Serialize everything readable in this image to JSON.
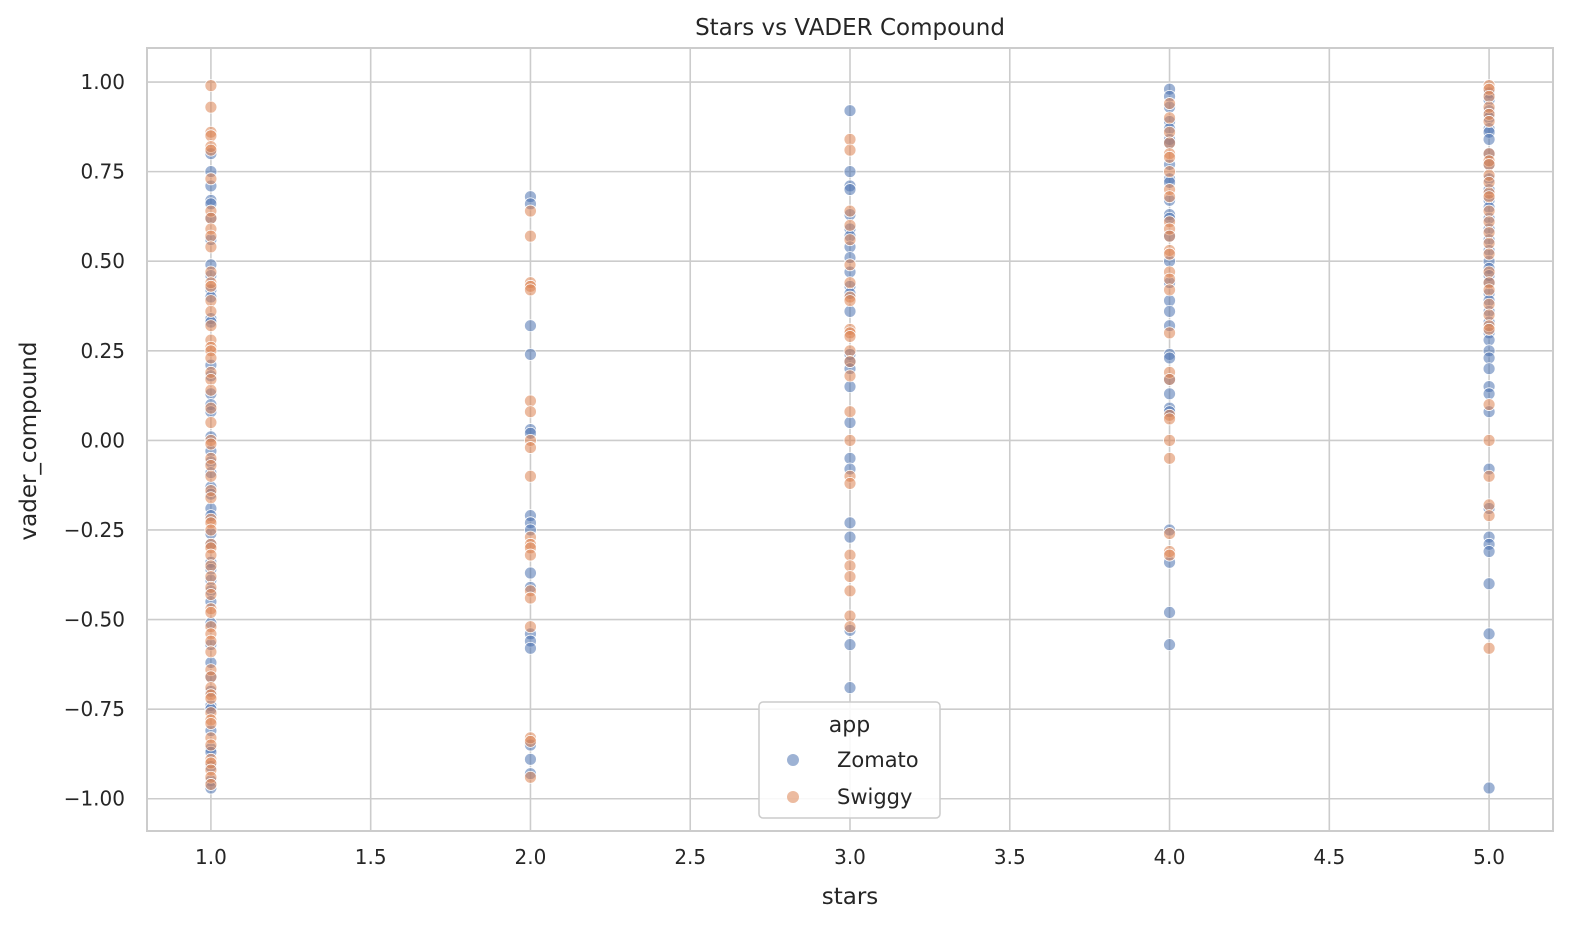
{
  "chart_data": {
    "type": "scatter",
    "title": "Stars vs VADER Compound",
    "xlabel": "stars",
    "ylabel": "vader_compound",
    "xlim": [
      0.8,
      5.2
    ],
    "ylim": [
      -1.09,
      1.095
    ],
    "x_ticks": [
      1.0,
      1.5,
      2.0,
      2.5,
      3.0,
      3.5,
      4.0,
      4.5,
      5.0
    ],
    "x_tick_labels": [
      "1.0",
      "1.5",
      "2.0",
      "2.5",
      "3.0",
      "3.5",
      "4.0",
      "4.5",
      "5.0"
    ],
    "y_ticks": [
      1.0,
      0.75,
      0.5,
      0.25,
      0.0,
      -0.25,
      -0.5,
      -0.75,
      -1.0
    ],
    "y_tick_labels": [
      "1.00",
      "0.75",
      "0.50",
      "0.25",
      "0.00",
      "−0.25",
      "−0.50",
      "−0.75",
      "−1.00"
    ],
    "grid": true,
    "legend": {
      "title": "app",
      "placement": "lower-center"
    },
    "series": [
      {
        "name": "Zomato",
        "color": "#4c72b0",
        "points": [
          [
            1,
            0.8
          ],
          [
            1,
            0.75
          ],
          [
            1,
            0.71
          ],
          [
            1,
            0.67
          ],
          [
            1,
            0.66
          ],
          [
            1,
            0.62
          ],
          [
            1,
            0.56
          ],
          [
            1,
            0.49
          ],
          [
            1,
            0.46
          ],
          [
            1,
            0.42
          ],
          [
            1,
            0.4
          ],
          [
            1,
            0.34
          ],
          [
            1,
            0.33
          ],
          [
            1,
            0.21
          ],
          [
            1,
            0.18
          ],
          [
            1,
            0.13
          ],
          [
            1,
            0.1
          ],
          [
            1,
            0.08
          ],
          [
            1,
            0.01
          ],
          [
            1,
            -0.03
          ],
          [
            1,
            -0.06
          ],
          [
            1,
            -0.09
          ],
          [
            1,
            -0.13
          ],
          [
            1,
            -0.15
          ],
          [
            1,
            -0.19
          ],
          [
            1,
            -0.21
          ],
          [
            1,
            -0.26
          ],
          [
            1,
            -0.29
          ],
          [
            1,
            -0.34
          ],
          [
            1,
            -0.36
          ],
          [
            1,
            -0.39
          ],
          [
            1,
            -0.42
          ],
          [
            1,
            -0.45
          ],
          [
            1,
            -0.51
          ],
          [
            1,
            -0.57
          ],
          [
            1,
            -0.62
          ],
          [
            1,
            -0.66
          ],
          [
            1,
            -0.7
          ],
          [
            1,
            -0.74
          ],
          [
            1,
            -0.75
          ],
          [
            1,
            -0.81
          ],
          [
            1,
            -0.86
          ],
          [
            1,
            -0.87
          ],
          [
            1,
            -0.91
          ],
          [
            1,
            -0.95
          ],
          [
            1,
            -0.97
          ],
          [
            2,
            0.68
          ],
          [
            2,
            0.66
          ],
          [
            2,
            0.32
          ],
          [
            2,
            0.24
          ],
          [
            2,
            0.03
          ],
          [
            2,
            0.02
          ],
          [
            2,
            -0.21
          ],
          [
            2,
            -0.23
          ],
          [
            2,
            -0.25
          ],
          [
            2,
            -0.37
          ],
          [
            2,
            -0.41
          ],
          [
            2,
            -0.54
          ],
          [
            2,
            -0.56
          ],
          [
            2,
            -0.58
          ],
          [
            2,
            -0.85
          ],
          [
            2,
            -0.89
          ],
          [
            2,
            -0.93
          ],
          [
            3,
            0.92
          ],
          [
            3,
            0.75
          ],
          [
            3,
            0.71
          ],
          [
            3,
            0.7
          ],
          [
            3,
            0.63
          ],
          [
            3,
            0.59
          ],
          [
            3,
            0.57
          ],
          [
            3,
            0.54
          ],
          [
            3,
            0.51
          ],
          [
            3,
            0.47
          ],
          [
            3,
            0.43
          ],
          [
            3,
            0.41
          ],
          [
            3,
            0.36
          ],
          [
            3,
            0.24
          ],
          [
            3,
            0.22
          ],
          [
            3,
            0.2
          ],
          [
            3,
            0.15
          ],
          [
            3,
            0.05
          ],
          [
            3,
            -0.05
          ],
          [
            3,
            -0.08
          ],
          [
            3,
            -0.23
          ],
          [
            3,
            -0.27
          ],
          [
            3,
            -0.53
          ],
          [
            3,
            -0.57
          ],
          [
            3,
            -0.69
          ],
          [
            4,
            0.98
          ],
          [
            4,
            0.96
          ],
          [
            4,
            0.93
          ],
          [
            4,
            0.89
          ],
          [
            4,
            0.87
          ],
          [
            4,
            0.84
          ],
          [
            4,
            0.83
          ],
          [
            4,
            0.77
          ],
          [
            4,
            0.73
          ],
          [
            4,
            0.72
          ],
          [
            4,
            0.67
          ],
          [
            4,
            0.63
          ],
          [
            4,
            0.62
          ],
          [
            4,
            0.57
          ],
          [
            4,
            0.5
          ],
          [
            4,
            0.44
          ],
          [
            4,
            0.39
          ],
          [
            4,
            0.36
          ],
          [
            4,
            0.32
          ],
          [
            4,
            0.24
          ],
          [
            4,
            0.23
          ],
          [
            4,
            0.17
          ],
          [
            4,
            0.13
          ],
          [
            4,
            0.09
          ],
          [
            4,
            0.08
          ],
          [
            4,
            -0.25
          ],
          [
            4,
            -0.34
          ],
          [
            4,
            -0.48
          ],
          [
            4,
            -0.57
          ],
          [
            5,
            0.97
          ],
          [
            5,
            0.95
          ],
          [
            5,
            0.92
          ],
          [
            5,
            0.9
          ],
          [
            5,
            0.87
          ],
          [
            5,
            0.86
          ],
          [
            5,
            0.84
          ],
          [
            5,
            0.8
          ],
          [
            5,
            0.77
          ],
          [
            5,
            0.73
          ],
          [
            5,
            0.7
          ],
          [
            5,
            0.67
          ],
          [
            5,
            0.65
          ],
          [
            5,
            0.62
          ],
          [
            5,
            0.59
          ],
          [
            5,
            0.56
          ],
          [
            5,
            0.53
          ],
          [
            5,
            0.5
          ],
          [
            5,
            0.48
          ],
          [
            5,
            0.46
          ],
          [
            5,
            0.44
          ],
          [
            5,
            0.41
          ],
          [
            5,
            0.39
          ],
          [
            5,
            0.36
          ],
          [
            5,
            0.33
          ],
          [
            5,
            0.3
          ],
          [
            5,
            0.28
          ],
          [
            5,
            0.25
          ],
          [
            5,
            0.23
          ],
          [
            5,
            0.2
          ],
          [
            5,
            0.15
          ],
          [
            5,
            0.13
          ],
          [
            5,
            0.08
          ],
          [
            5,
            -0.08
          ],
          [
            5,
            -0.19
          ],
          [
            5,
            -0.27
          ],
          [
            5,
            -0.29
          ],
          [
            5,
            -0.31
          ],
          [
            5,
            -0.4
          ],
          [
            5,
            -0.54
          ],
          [
            5,
            -0.97
          ]
        ]
      },
      {
        "name": "Swiggy",
        "color": "#dd8452",
        "points": [
          [
            1,
            0.99
          ],
          [
            1,
            0.93
          ],
          [
            1,
            0.86
          ],
          [
            1,
            0.85
          ],
          [
            1,
            0.82
          ],
          [
            1,
            0.81
          ],
          [
            1,
            0.73
          ],
          [
            1,
            0.64
          ],
          [
            1,
            0.62
          ],
          [
            1,
            0.59
          ],
          [
            1,
            0.57
          ],
          [
            1,
            0.54
          ],
          [
            1,
            0.47
          ],
          [
            1,
            0.44
          ],
          [
            1,
            0.43
          ],
          [
            1,
            0.39
          ],
          [
            1,
            0.36
          ],
          [
            1,
            0.32
          ],
          [
            1,
            0.28
          ],
          [
            1,
            0.26
          ],
          [
            1,
            0.25
          ],
          [
            1,
            0.23
          ],
          [
            1,
            0.19
          ],
          [
            1,
            0.17
          ],
          [
            1,
            0.14
          ],
          [
            1,
            0.09
          ],
          [
            1,
            0.05
          ],
          [
            1,
            0.0
          ],
          [
            1,
            -0.01
          ],
          [
            1,
            -0.05
          ],
          [
            1,
            -0.07
          ],
          [
            1,
            -0.1
          ],
          [
            1,
            -0.14
          ],
          [
            1,
            -0.16
          ],
          [
            1,
            -0.22
          ],
          [
            1,
            -0.23
          ],
          [
            1,
            -0.25
          ],
          [
            1,
            -0.29
          ],
          [
            1,
            -0.3
          ],
          [
            1,
            -0.32
          ],
          [
            1,
            -0.35
          ],
          [
            1,
            -0.38
          ],
          [
            1,
            -0.41
          ],
          [
            1,
            -0.43
          ],
          [
            1,
            -0.47
          ],
          [
            1,
            -0.48
          ],
          [
            1,
            -0.52
          ],
          [
            1,
            -0.54
          ],
          [
            1,
            -0.56
          ],
          [
            1,
            -0.59
          ],
          [
            1,
            -0.64
          ],
          [
            1,
            -0.66
          ],
          [
            1,
            -0.69
          ],
          [
            1,
            -0.71
          ],
          [
            1,
            -0.72
          ],
          [
            1,
            -0.76
          ],
          [
            1,
            -0.78
          ],
          [
            1,
            -0.79
          ],
          [
            1,
            -0.83
          ],
          [
            1,
            -0.85
          ],
          [
            1,
            -0.89
          ],
          [
            1,
            -0.9
          ],
          [
            1,
            -0.92
          ],
          [
            1,
            -0.94
          ],
          [
            1,
            -0.96
          ],
          [
            2,
            0.64
          ],
          [
            2,
            0.57
          ],
          [
            2,
            0.44
          ],
          [
            2,
            0.43
          ],
          [
            2,
            0.42
          ],
          [
            2,
            0.11
          ],
          [
            2,
            0.08
          ],
          [
            2,
            0.0
          ],
          [
            2,
            -0.02
          ],
          [
            2,
            -0.1
          ],
          [
            2,
            -0.27
          ],
          [
            2,
            -0.29
          ],
          [
            2,
            -0.3
          ],
          [
            2,
            -0.32
          ],
          [
            2,
            -0.42
          ],
          [
            2,
            -0.44
          ],
          [
            2,
            -0.52
          ],
          [
            2,
            -0.83
          ],
          [
            2,
            -0.84
          ],
          [
            2,
            -0.94
          ],
          [
            3,
            0.84
          ],
          [
            3,
            0.81
          ],
          [
            3,
            0.64
          ],
          [
            3,
            0.6
          ],
          [
            3,
            0.56
          ],
          [
            3,
            0.49
          ],
          [
            3,
            0.44
          ],
          [
            3,
            0.4
          ],
          [
            3,
            0.39
          ],
          [
            3,
            0.31
          ],
          [
            3,
            0.3
          ],
          [
            3,
            0.29
          ],
          [
            3,
            0.25
          ],
          [
            3,
            0.22
          ],
          [
            3,
            0.18
          ],
          [
            3,
            0.08
          ],
          [
            3,
            0.0
          ],
          [
            3,
            -0.1
          ],
          [
            3,
            -0.12
          ],
          [
            3,
            -0.32
          ],
          [
            3,
            -0.35
          ],
          [
            3,
            -0.38
          ],
          [
            3,
            -0.42
          ],
          [
            3,
            -0.49
          ],
          [
            3,
            -0.52
          ],
          [
            4,
            0.94
          ],
          [
            4,
            0.9
          ],
          [
            4,
            0.86
          ],
          [
            4,
            0.83
          ],
          [
            4,
            0.8
          ],
          [
            4,
            0.79
          ],
          [
            4,
            0.75
          ],
          [
            4,
            0.7
          ],
          [
            4,
            0.68
          ],
          [
            4,
            0.61
          ],
          [
            4,
            0.59
          ],
          [
            4,
            0.57
          ],
          [
            4,
            0.53
          ],
          [
            4,
            0.52
          ],
          [
            4,
            0.47
          ],
          [
            4,
            0.45
          ],
          [
            4,
            0.42
          ],
          [
            4,
            0.3
          ],
          [
            4,
            0.19
          ],
          [
            4,
            0.17
          ],
          [
            4,
            0.07
          ],
          [
            4,
            0.06
          ],
          [
            4,
            0.0
          ],
          [
            4,
            -0.05
          ],
          [
            4,
            -0.26
          ],
          [
            4,
            -0.31
          ],
          [
            4,
            -0.32
          ],
          [
            5,
            0.99
          ],
          [
            5,
            0.98
          ],
          [
            5,
            0.96
          ],
          [
            5,
            0.93
          ],
          [
            5,
            0.91
          ],
          [
            5,
            0.89
          ],
          [
            5,
            0.8
          ],
          [
            5,
            0.78
          ],
          [
            5,
            0.77
          ],
          [
            5,
            0.74
          ],
          [
            5,
            0.72
          ],
          [
            5,
            0.69
          ],
          [
            5,
            0.68
          ],
          [
            5,
            0.64
          ],
          [
            5,
            0.61
          ],
          [
            5,
            0.58
          ],
          [
            5,
            0.55
          ],
          [
            5,
            0.52
          ],
          [
            5,
            0.47
          ],
          [
            5,
            0.44
          ],
          [
            5,
            0.42
          ],
          [
            5,
            0.38
          ],
          [
            5,
            0.35
          ],
          [
            5,
            0.32
          ],
          [
            5,
            0.31
          ],
          [
            5,
            0.1
          ],
          [
            5,
            0.0
          ],
          [
            5,
            -0.1
          ],
          [
            5,
            -0.18
          ],
          [
            5,
            -0.21
          ],
          [
            5,
            -0.58
          ]
        ]
      }
    ]
  }
}
